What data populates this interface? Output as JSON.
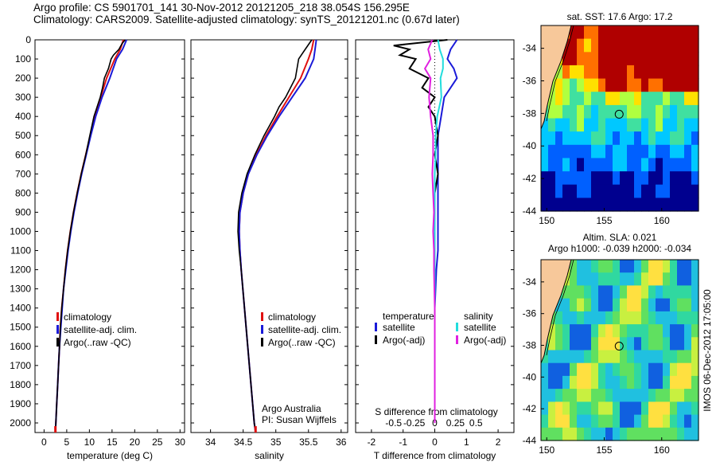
{
  "header": {
    "line1": "Argo profile: CS 5901701_141 30-Nov-2012 20121205_218 38.054S 156.295E",
    "line2": "Climatology: CARS2009. Satellite-adjusted climatology: synTS_20121201.nc (0.67d later)"
  },
  "colors": {
    "clim": "#e01010",
    "sat": "#1a1ad8",
    "argo": "#000000",
    "sat_s": "#22dddd",
    "argo_s": "#e020e0"
  },
  "chart_data": [
    {
      "type": "line",
      "name": "temperature",
      "xlabel": "temperature (deg C)",
      "xlim": [
        -2,
        31
      ],
      "xticks": [
        0,
        5,
        10,
        15,
        20,
        25,
        30
      ],
      "ylim": [
        0,
        2050
      ],
      "yticks": [
        0,
        100,
        200,
        300,
        400,
        500,
        600,
        700,
        800,
        900,
        1000,
        1100,
        1200,
        1300,
        1400,
        1500,
        1600,
        1700,
        1800,
        1900,
        2000
      ],
      "legend": [
        "climatology",
        "satellite-adj. clim.",
        "Argo(..raw -QC)"
      ],
      "series": [
        {
          "name": "climatology",
          "depth": [
            0,
            50,
            100,
            200,
            300,
            400,
            500,
            600,
            700,
            800,
            900,
            1000,
            1100,
            1200,
            1300,
            1400,
            1500,
            1600,
            1700,
            1800,
            1900,
            2000,
            2050
          ],
          "values": [
            17.5,
            16.8,
            15.6,
            13.8,
            12.5,
            11.2,
            10.2,
            9.2,
            8.2,
            7.3,
            6.5,
            5.8,
            5.2,
            4.7,
            4.3,
            3.9,
            3.6,
            3.4,
            3.2,
            3.0,
            2.8,
            2.6,
            2.5
          ]
        },
        {
          "name": "satellite-adj. clim.",
          "depth": [
            0,
            50,
            100,
            200,
            300,
            400,
            500,
            600,
            700,
            800,
            900,
            1000,
            1100,
            1200,
            1300,
            1400,
            1500,
            1600,
            1700,
            1800,
            1900,
            2000,
            2050
          ],
          "values": [
            18.2,
            17.3,
            16.0,
            14.5,
            12.8,
            11.4,
            10.3,
            9.3,
            8.3,
            7.4,
            6.6,
            5.9,
            5.3,
            4.8,
            4.3,
            4.0,
            3.7,
            3.4,
            3.2,
            3.0,
            2.8,
            2.6,
            2.5
          ]
        },
        {
          "name": "Argo(..raw -QC)",
          "depth": [
            0,
            20,
            50,
            80,
            100,
            150,
            200,
            250,
            300,
            400,
            500,
            600,
            700,
            800,
            900,
            1000,
            1100,
            1200,
            1300,
            1400,
            1500,
            1600,
            1700,
            1800,
            1900,
            2000,
            2050
          ],
          "values": [
            17.9,
            17.2,
            16.5,
            15.3,
            14.8,
            14.2,
            13.3,
            12.9,
            12.4,
            11.0,
            10.1,
            9.2,
            8.2,
            7.3,
            6.5,
            5.8,
            5.2,
            4.7,
            4.3,
            3.9,
            3.6,
            3.4,
            3.2,
            3.0,
            2.8,
            2.6,
            2.5
          ]
        }
      ]
    },
    {
      "type": "line",
      "name": "salinity",
      "xlabel": "salinity",
      "xlim": [
        33.7,
        36.1
      ],
      "xticks": [
        34,
        34.5,
        35,
        35.5,
        36
      ],
      "xticklabels": [
        "34",
        "34.5",
        "35",
        "35.5",
        "36"
      ],
      "legend": [
        "climatology",
        "satellite-adj. clim.",
        "Argo(..raw -QC)"
      ],
      "annotation": [
        "Argo Australia",
        "PI: Susan Wijffels"
      ],
      "series": [
        {
          "name": "climatology",
          "depth": [
            0,
            50,
            100,
            200,
            300,
            400,
            500,
            600,
            700,
            800,
            900,
            1000,
            1100,
            1200,
            1400,
            1600,
            1800,
            2000,
            2050
          ],
          "values": [
            35.58,
            35.55,
            35.5,
            35.38,
            35.2,
            35.02,
            34.85,
            34.7,
            34.58,
            34.5,
            34.45,
            34.44,
            34.45,
            34.47,
            34.52,
            34.57,
            34.62,
            34.67,
            34.69
          ]
        },
        {
          "name": "satellite-adj. clim.",
          "depth": [
            0,
            50,
            100,
            200,
            300,
            400,
            500,
            600,
            700,
            800,
            900,
            1000,
            1100,
            1200,
            1400,
            1600,
            1800,
            2000,
            2050
          ],
          "values": [
            35.62,
            35.6,
            35.58,
            35.45,
            35.25,
            35.05,
            34.87,
            34.71,
            34.58,
            34.5,
            34.45,
            34.44,
            34.45,
            34.47,
            34.52,
            34.57,
            34.62,
            34.67,
            34.69
          ]
        },
        {
          "name": "Argo(..raw -QC)",
          "depth": [
            0,
            50,
            100,
            200,
            300,
            350,
            400,
            500,
            600,
            700,
            800,
            900,
            1000,
            1100,
            1200,
            1400,
            1600,
            1800,
            2000,
            2050
          ],
          "values": [
            35.55,
            35.45,
            35.35,
            35.3,
            35.15,
            35.05,
            34.98,
            34.82,
            34.68,
            34.56,
            34.48,
            34.43,
            34.42,
            34.44,
            34.47,
            34.52,
            34.57,
            34.62,
            34.67,
            34.69
          ]
        }
      ]
    },
    {
      "type": "line",
      "name": "differences",
      "xlabel": "T difference from climatology",
      "xlim": [
        -2.5,
        2.5
      ],
      "xticks": [
        -2,
        -1,
        0,
        1,
        2
      ],
      "xlabel_top": "S difference from climatology",
      "xticks_top": [
        -0.5,
        -0.25,
        0,
        0.25,
        0.5
      ],
      "legend_temperature": {
        "title": "temperature",
        "items": [
          "satellite",
          "Argo(-adj)"
        ]
      },
      "legend_salinity": {
        "title": "salinity",
        "items": [
          "satellite",
          "Argo(-adj)"
        ]
      },
      "series": [
        {
          "name": "T satellite",
          "depth": [
            0,
            50,
            100,
            150,
            200,
            300,
            400,
            500,
            600,
            700,
            800,
            900,
            1000,
            1100,
            1200,
            1400,
            1600,
            1800,
            2000
          ],
          "values": [
            0.7,
            0.5,
            0.4,
            0.6,
            0.7,
            0.3,
            0.2,
            0.1,
            0.1,
            0.1,
            0.1,
            0.1,
            0.1,
            0.1,
            0.05,
            0.0,
            0.0,
            0.0,
            0.0
          ]
        },
        {
          "name": "T Argo(-adj)",
          "depth": [
            0,
            30,
            50,
            80,
            100,
            150,
            200,
            250,
            300,
            350,
            400,
            500,
            600,
            700,
            800,
            900,
            1000,
            1200,
            1400,
            1600,
            1800,
            2000
          ],
          "values": [
            0.4,
            -1.3,
            -0.8,
            -1.1,
            -0.6,
            -0.8,
            -0.2,
            -0.4,
            0.0,
            -0.2,
            0.0,
            0.1,
            0.0,
            0.1,
            0.0,
            0.0,
            0.0,
            0.0,
            0.0,
            0.0,
            0.0,
            0.0
          ]
        },
        {
          "name": "S satellite",
          "depth": [
            0,
            50,
            100,
            150,
            200,
            300,
            400,
            500,
            600,
            700,
            800,
            900,
            1000,
            1200,
            1400,
            1600,
            1800,
            2000
          ],
          "values": [
            0.04,
            0.06,
            0.1,
            0.1,
            0.07,
            0.08,
            0.03,
            0.01,
            0.01,
            0.0,
            0.0,
            0.0,
            0.0,
            0.0,
            0.0,
            0.0,
            0.0,
            0.0
          ]
        },
        {
          "name": "S Argo(-adj)",
          "depth": [
            0,
            50,
            100,
            150,
            200,
            300,
            400,
            500,
            600,
            700,
            800,
            900,
            1000,
            1100,
            1200,
            1400,
            1600,
            1800,
            2000
          ],
          "values": [
            -0.03,
            -0.08,
            -0.05,
            -0.12,
            -0.05,
            -0.07,
            -0.05,
            -0.02,
            -0.02,
            -0.03,
            -0.02,
            -0.01,
            -0.02,
            -0.01,
            -0.01,
            0.0,
            0.0,
            0.0,
            0.0
          ]
        }
      ]
    },
    {
      "type": "heatmap",
      "name": "sst-map",
      "title": "sat. SST: 17.6 Argo: 17.2",
      "xticks": [
        150,
        155,
        160
      ],
      "yticks": [
        -34,
        -36,
        -38,
        -40,
        -42,
        -44
      ],
      "xlim": [
        149.5,
        163.2
      ],
      "ylim": [
        -44,
        -32.6
      ],
      "marker": {
        "lon": 156.3,
        "lat": -38.05
      }
    },
    {
      "type": "heatmap",
      "name": "sla-map",
      "title": "Altim. SLA: 0.021",
      "subtitle": "Argo h1000: -0.039 h2000: -0.034",
      "xticks": [
        150,
        155,
        160
      ],
      "yticks": [
        -34,
        -36,
        -38,
        -40,
        -42,
        -44
      ],
      "xlim": [
        149.5,
        163.2
      ],
      "ylim": [
        -44,
        -32.6
      ],
      "marker": {
        "lon": 156.3,
        "lat": -38.05
      }
    }
  ],
  "sidebar_text": "IMOS 06-Dec-2012 17:05:00"
}
